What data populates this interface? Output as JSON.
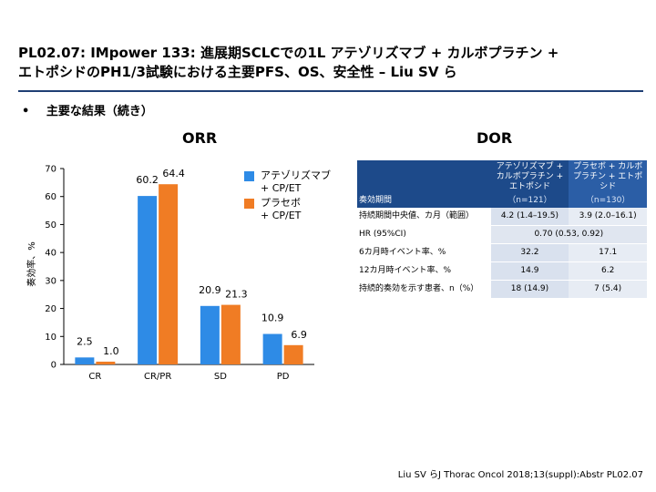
{
  "title": {
    "line1": "PL02.07: IMpower 133: 進展期SCLCでの1L アテゾリズマブ + カルボプラチン +",
    "line2": "エトポシドのPH1/3試験における主要PFS、OS、安全性 – Liu SV ら"
  },
  "bullet": {
    "marker": "•",
    "text": "主要な結果（続き）"
  },
  "orr_heading": "ORR",
  "dor_heading": "DOR",
  "colors": {
    "atezo": "#2e8be6",
    "placebo": "#f07c24",
    "header": "#1d4a8a"
  },
  "chart_data": {
    "type": "bar",
    "ylabel": "奏効率、%",
    "ylim": [
      0,
      70
    ],
    "yticks": [
      0,
      10,
      20,
      30,
      40,
      50,
      60,
      70
    ],
    "categories": [
      "CR",
      "CR/PR",
      "SD",
      "PD"
    ],
    "series": [
      {
        "name": "アテゾリズマブ + CP/ET",
        "values": [
          2.5,
          60.2,
          20.9,
          10.9
        ],
        "labels": [
          "2.5",
          "60.2",
          "20.9",
          "10.9"
        ]
      },
      {
        "name": "プラセボ + CP/ET",
        "values": [
          1.0,
          64.4,
          21.3,
          6.9
        ],
        "labels": [
          "1.0",
          "64.4",
          "21.3",
          "6.9"
        ]
      }
    ]
  },
  "legend": {
    "atezo_line1": "アテゾリズマブ",
    "atezo_line2": "+ CP/ET",
    "placebo_line1": "プラセボ",
    "placebo_line2": "+ CP/ET"
  },
  "dor_table": {
    "header_label": "奏効期間",
    "col1_name": "アテゾリズマブ + カルボプラチン + エトポシド",
    "col2_name": "プラセボ + カルボプラチン + エトポシド",
    "col1_n": "（n=121）",
    "col2_n": "（n=130）",
    "rows": [
      {
        "label": "持続期間中央値、カ月（範囲）",
        "c1": "4.2 (1.4–19.5)",
        "c2": "3.9 (2.0–16.1)"
      },
      {
        "label": "HR (95%CI)",
        "span": "0.70 (0.53, 0.92)"
      },
      {
        "label": "6カ月時イベント率、%",
        "c1": "32.2",
        "c2": "17.1"
      },
      {
        "label": "12カ月時イベント率、%",
        "c1": "14.9",
        "c2": "6.2"
      },
      {
        "label": "持続的奏効を示す患者、n（%）",
        "c1": "18 (14.9)",
        "c2": "7 (5.4)"
      }
    ]
  },
  "citation": "Liu SV らJ Thorac Oncol 2018;13(suppl):Abstr PL02.07"
}
